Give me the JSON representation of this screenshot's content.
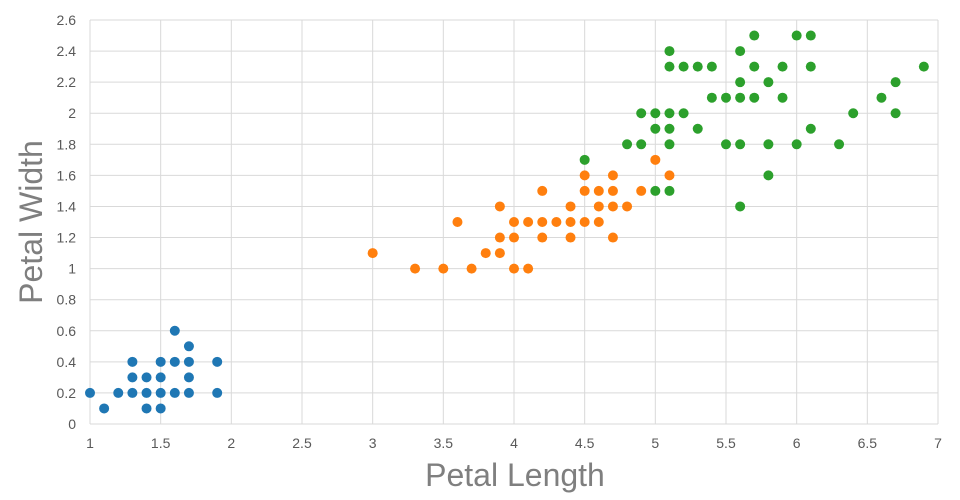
{
  "chart_data": {
    "type": "scatter",
    "title": "",
    "xlabel": "Petal Length",
    "ylabel": "Petal Width",
    "xlim": [
      1,
      7
    ],
    "ylim": [
      0,
      2.6
    ],
    "x_ticks": [
      "1",
      "1.5",
      "2",
      "2.5",
      "3",
      "3.5",
      "4",
      "4.5",
      "5",
      "5.5",
      "6",
      "6.5",
      "7"
    ],
    "y_ticks": [
      "0",
      "0.2",
      "0.4",
      "0.6",
      "0.8",
      "1",
      "1.2",
      "1.4",
      "1.6",
      "1.8",
      "2",
      "2.2",
      "2.4",
      "2.6"
    ],
    "grid": true,
    "legend": "none",
    "series": [
      {
        "color": "#1f77b4",
        "points": [
          [
            1.0,
            0.2
          ],
          [
            1.1,
            0.1
          ],
          [
            1.2,
            0.2
          ],
          [
            1.3,
            0.2
          ],
          [
            1.3,
            0.3
          ],
          [
            1.3,
            0.4
          ],
          [
            1.4,
            0.1
          ],
          [
            1.4,
            0.2
          ],
          [
            1.4,
            0.3
          ],
          [
            1.5,
            0.1
          ],
          [
            1.5,
            0.2
          ],
          [
            1.5,
            0.3
          ],
          [
            1.5,
            0.4
          ],
          [
            1.6,
            0.2
          ],
          [
            1.6,
            0.4
          ],
          [
            1.6,
            0.6
          ],
          [
            1.7,
            0.2
          ],
          [
            1.7,
            0.3
          ],
          [
            1.7,
            0.4
          ],
          [
            1.7,
            0.5
          ],
          [
            1.9,
            0.2
          ],
          [
            1.9,
            0.4
          ]
        ]
      },
      {
        "color": "#ff7f0e",
        "points": [
          [
            3.0,
            1.1
          ],
          [
            3.3,
            1.0
          ],
          [
            3.5,
            1.0
          ],
          [
            3.6,
            1.3
          ],
          [
            3.7,
            1.0
          ],
          [
            3.8,
            1.1
          ],
          [
            3.9,
            1.1
          ],
          [
            3.9,
            1.2
          ],
          [
            3.9,
            1.4
          ],
          [
            4.0,
            1.0
          ],
          [
            4.0,
            1.2
          ],
          [
            4.0,
            1.3
          ],
          [
            4.1,
            1.0
          ],
          [
            4.1,
            1.3
          ],
          [
            4.2,
            1.2
          ],
          [
            4.2,
            1.3
          ],
          [
            4.2,
            1.5
          ],
          [
            4.3,
            1.3
          ],
          [
            4.4,
            1.2
          ],
          [
            4.4,
            1.3
          ],
          [
            4.4,
            1.4
          ],
          [
            4.5,
            1.3
          ],
          [
            4.5,
            1.5
          ],
          [
            4.5,
            1.6
          ],
          [
            4.6,
            1.3
          ],
          [
            4.6,
            1.4
          ],
          [
            4.6,
            1.5
          ],
          [
            4.7,
            1.2
          ],
          [
            4.7,
            1.4
          ],
          [
            4.7,
            1.5
          ],
          [
            4.7,
            1.6
          ],
          [
            4.8,
            1.4
          ],
          [
            4.9,
            1.5
          ],
          [
            5.0,
            1.7
          ],
          [
            5.1,
            1.6
          ]
        ]
      },
      {
        "color": "#2ca02c",
        "points": [
          [
            4.5,
            1.7
          ],
          [
            4.8,
            1.8
          ],
          [
            4.9,
            1.8
          ],
          [
            4.9,
            2.0
          ],
          [
            5.0,
            1.5
          ],
          [
            5.0,
            1.9
          ],
          [
            5.0,
            2.0
          ],
          [
            5.1,
            1.5
          ],
          [
            5.1,
            1.8
          ],
          [
            5.1,
            1.9
          ],
          [
            5.1,
            2.0
          ],
          [
            5.1,
            2.3
          ],
          [
            5.1,
            2.4
          ],
          [
            5.2,
            2.0
          ],
          [
            5.2,
            2.3
          ],
          [
            5.3,
            1.9
          ],
          [
            5.3,
            2.3
          ],
          [
            5.4,
            2.1
          ],
          [
            5.4,
            2.3
          ],
          [
            5.5,
            1.8
          ],
          [
            5.5,
            2.1
          ],
          [
            5.6,
            1.4
          ],
          [
            5.6,
            1.8
          ],
          [
            5.6,
            2.1
          ],
          [
            5.6,
            2.2
          ],
          [
            5.6,
            2.4
          ],
          [
            5.7,
            2.1
          ],
          [
            5.7,
            2.3
          ],
          [
            5.7,
            2.5
          ],
          [
            5.8,
            1.6
          ],
          [
            5.8,
            1.8
          ],
          [
            5.8,
            2.2
          ],
          [
            5.9,
            2.1
          ],
          [
            5.9,
            2.3
          ],
          [
            6.0,
            1.8
          ],
          [
            6.0,
            2.5
          ],
          [
            6.1,
            1.9
          ],
          [
            6.1,
            2.3
          ],
          [
            6.1,
            2.5
          ],
          [
            6.3,
            1.8
          ],
          [
            6.4,
            2.0
          ],
          [
            6.6,
            2.1
          ],
          [
            6.7,
            2.0
          ],
          [
            6.7,
            2.2
          ],
          [
            6.9,
            2.3
          ]
        ]
      }
    ]
  }
}
